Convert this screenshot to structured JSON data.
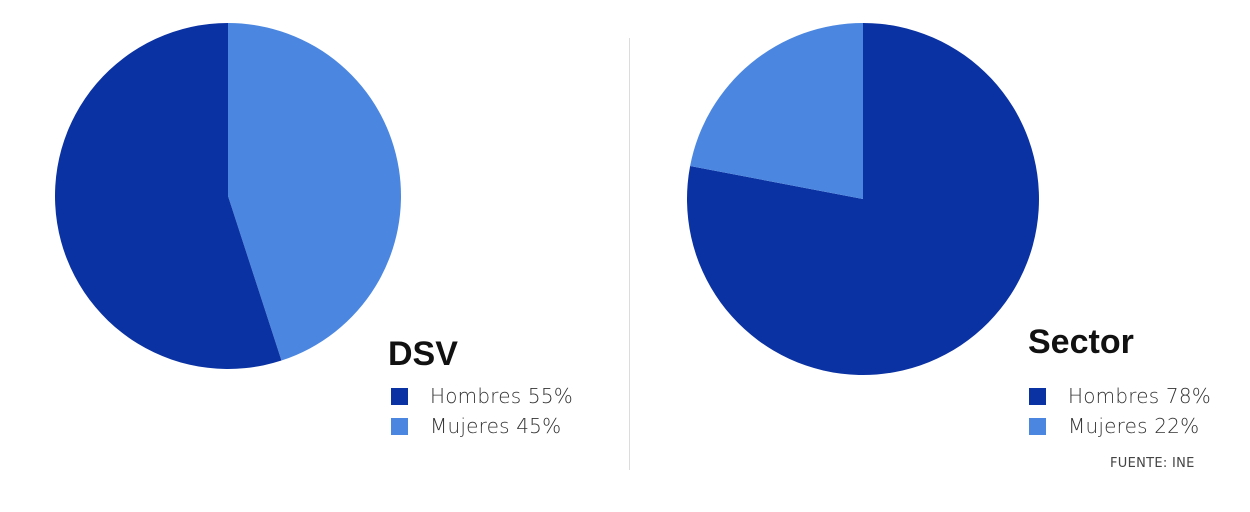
{
  "colors": {
    "hombres": "#0b32a3",
    "mujeres": "#4b87e0"
  },
  "source": "FUENTE: INE",
  "chart_data": [
    {
      "type": "pie",
      "title": "DSV",
      "categories": [
        "Hombres",
        "Mujeres"
      ],
      "values": [
        55,
        45
      ],
      "legend": [
        {
          "label": "Hombres 55%",
          "color": "#0b32a3"
        },
        {
          "label": "Mujeres 45%",
          "color": "#4b87e0"
        }
      ]
    },
    {
      "type": "pie",
      "title": "Sector",
      "categories": [
        "Hombres",
        "Mujeres"
      ],
      "values": [
        78,
        22
      ],
      "legend": [
        {
          "label": "Hombres 78%",
          "color": "#0b32a3"
        },
        {
          "label": "Mujeres 22%",
          "color": "#4b87e0"
        }
      ]
    }
  ]
}
